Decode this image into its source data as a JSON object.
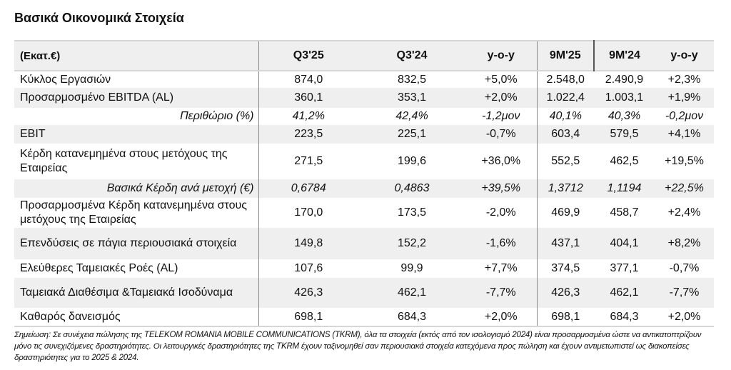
{
  "title": "Βασικά Οικονομικά Στοιχεία",
  "table": {
    "headers": [
      "(Εκατ.€)",
      "Q3'25",
      "Q3'24",
      "y-o-y",
      "9M'25",
      "9M'24",
      "y-o-y"
    ],
    "rows": [
      {
        "label": "Κύκλος Εργασιών",
        "values": [
          "874,0",
          "832,5",
          "+5,0%",
          "2.548,0",
          "2.490,9",
          "+2,3%"
        ]
      },
      {
        "label": "Προσαρμοσμένο EBITDA (AL)",
        "values": [
          "360,1",
          "353,1",
          "+2,0%",
          "1.022,4",
          "1.003,1",
          "+1,9%"
        ]
      },
      {
        "label": "Περιθώριο (%)",
        "values": [
          "41,2%",
          "42,4%",
          "-1,2μον",
          "40,1%",
          "40,3%",
          "-0,2μον"
        ]
      },
      {
        "label": "EBIT",
        "values": [
          "223,5",
          "225,1",
          "-0,7%",
          "603,4",
          "579,5",
          "+4,1%"
        ]
      },
      {
        "label": "Κέρδη κατανεμημένα στους μετόχους της Εταιρείας",
        "values": [
          "271,5",
          "199,6",
          "+36,0%",
          "552,5",
          "462,5",
          "+19,5%"
        ]
      },
      {
        "label": "Βασικά Κέρδη ανά μετοχή (€)",
        "values": [
          "0,6784",
          "0,4863",
          "+39,5%",
          "1,3712",
          "1,1194",
          "+22,5%"
        ]
      },
      {
        "label": "Προσαρμοσμένα Κέρδη κατανεμημένα στους μετόχους της Εταιρείας",
        "values": [
          "170,0",
          "173,5",
          "-2,0%",
          "469,9",
          "458,7",
          "+2,4%"
        ]
      },
      {
        "label": "Επενδύσεις σε πάγια περιουσιακά στοιχεία",
        "values": [
          "149,8",
          "152,2",
          "-1,6%",
          "437,1",
          "404,1",
          "+8,2%"
        ]
      },
      {
        "label": "Ελεύθερες Ταμειακές Ροές (AL)",
        "values": [
          "107,6",
          "99,9",
          "+7,7%",
          "374,5",
          "377,1",
          "-0,7%"
        ]
      },
      {
        "label": "Ταμειακά Διαθέσιμα &Ταμειακά Ισοδύναμα",
        "values": [
          "426,3",
          "462,1",
          "-7,7%",
          "426,3",
          "462,1",
          "-7,7%"
        ]
      },
      {
        "label": "Καθαρός δανεισμός",
        "values": [
          "698,1",
          "684,3",
          "+2,0%",
          "698,1",
          "684,3",
          "+2,0%"
        ]
      }
    ]
  },
  "note": "Σημείωση: Σε συνέχεια πώλησης της TELEKOM ROMANIA MOBILE COMMUNICATIONS (TKRM), όλα τα στοιχεία (εκτός από τον ισολογισμό 2024) είναι προσαρμοσμένα ώστε να αντικατοπτρίζουν μόνο τις συνεχιζόμενες δραστηριότητες. Οι λειτουργικές δραστηριότητες της TKRM έχουν ταξινομηθεί σαν περιουσιακά στοιχεία κατεχόμενα προς πώληση και έχουν αντιμετωπιστεί ως διακοπείσες δραστηριότητες  για το 2025 & 2024.",
  "colors": {
    "row_shade": "#efefef",
    "border": "#d6d6d6"
  }
}
